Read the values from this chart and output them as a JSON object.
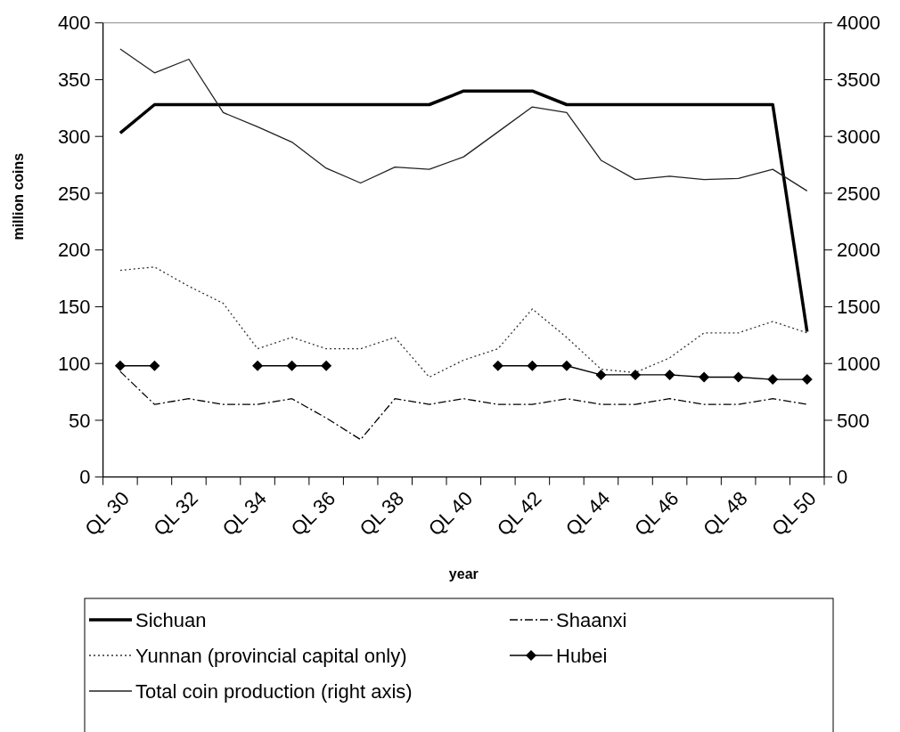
{
  "chart_data": {
    "type": "line",
    "xlabel": "year",
    "ylabel": "million coins",
    "categories": [
      "QL 30",
      null,
      "QL 32",
      null,
      "QL 34",
      null,
      "QL 36",
      null,
      "QL 38",
      null,
      "QL 40",
      null,
      "QL 42",
      null,
      "QL 44",
      null,
      "QL 46",
      null,
      "QL 48",
      null,
      "QL 50"
    ],
    "ylim": [
      0,
      400
    ],
    "yticks": [
      0,
      50,
      100,
      150,
      200,
      250,
      300,
      350,
      400
    ],
    "y2lim": [
      0,
      4000
    ],
    "y2ticks": [
      0,
      500,
      1000,
      1500,
      2000,
      2500,
      3000,
      3500,
      4000
    ],
    "legend": "bottom",
    "grid": false,
    "series": [
      {
        "name": "Sichuan",
        "color": "#000000",
        "line_style": "solid",
        "marker": "none",
        "values": [
          303,
          328,
          328,
          328,
          328,
          328,
          328,
          328,
          328,
          328,
          340,
          340,
          340,
          328,
          328,
          328,
          328,
          328,
          328,
          328,
          128
        ]
      },
      {
        "name": "Shaanxi",
        "color": "#000000",
        "line_style": "dashed",
        "marker": "none",
        "values": [
          93,
          64,
          69,
          64,
          64,
          69,
          52,
          33,
          69,
          64,
          69,
          64,
          64,
          69,
          64,
          64,
          69,
          64,
          64,
          69,
          64
        ]
      },
      {
        "name": "Yunnan (provincial capital only)",
        "color": "#333333",
        "line_style": "dotted",
        "marker": "none",
        "values": [
          182,
          185,
          168,
          153,
          113,
          123,
          113,
          113,
          123,
          88,
          103,
          113,
          148,
          123,
          95,
          92,
          105,
          127,
          127,
          137,
          127
        ]
      },
      {
        "name": "Hubei",
        "color": "#000000",
        "line_style": "solid",
        "marker": "diamond",
        "values": [
          98,
          98,
          null,
          null,
          98,
          98,
          98,
          null,
          null,
          null,
          null,
          98,
          98,
          98,
          90,
          90,
          90,
          88,
          88,
          86,
          86
        ]
      },
      {
        "name": "Total coin production (right axis)",
        "color": "#222222",
        "line_style": "solid",
        "marker": "none",
        "axis": "y2",
        "values": [
          3770,
          3560,
          3680,
          3210,
          3085,
          2950,
          2720,
          2590,
          2730,
          2710,
          2820,
          3040,
          3260,
          3210,
          2790,
          2620,
          2650,
          2620,
          2630,
          2710,
          2520
        ]
      }
    ]
  }
}
